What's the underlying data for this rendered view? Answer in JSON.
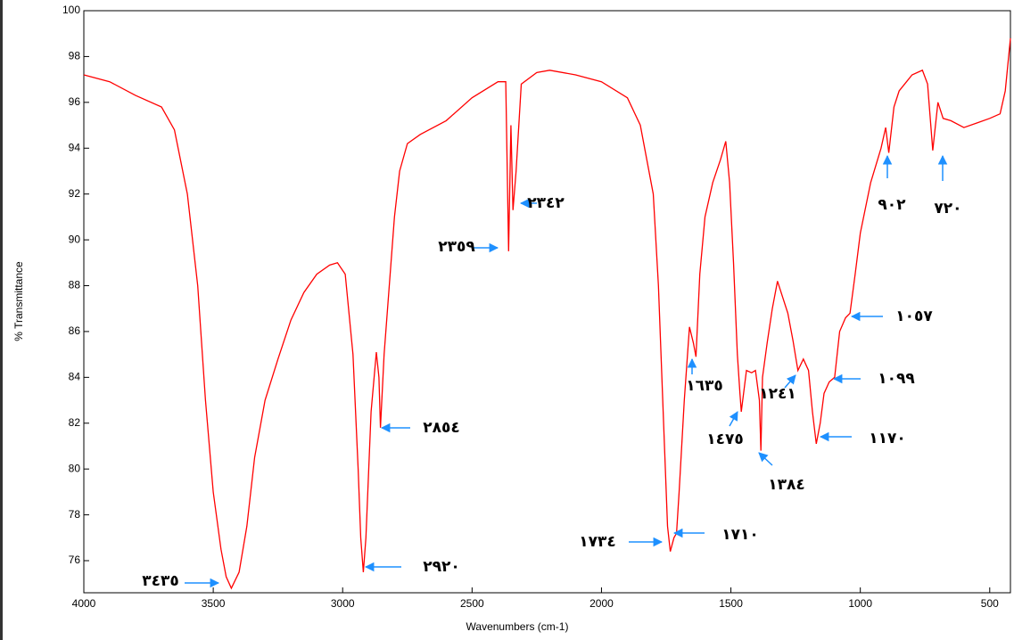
{
  "chart_data": {
    "type": "line",
    "xlabel": "Wavenumbers (cm-1)",
    "ylabel": "% Transmittance",
    "color": "#ff0000",
    "annotation_color": "#1e90ff",
    "xlim": [
      4000,
      420
    ],
    "ylim": [
      74.6,
      100
    ],
    "xticks": [
      4000,
      3500,
      3000,
      2500,
      2000,
      1500,
      1000,
      500
    ],
    "yticks": [
      76,
      78,
      80,
      82,
      84,
      86,
      88,
      90,
      92,
      94,
      96,
      98,
      100
    ],
    "x": [
      4000,
      3900,
      3800,
      3700,
      3650,
      3600,
      3560,
      3530,
      3500,
      3470,
      3450,
      3430,
      3400,
      3370,
      3340,
      3300,
      3250,
      3200,
      3150,
      3100,
      3050,
      3020,
      2990,
      2960,
      2940,
      2930,
      2920,
      2910,
      2890,
      2870,
      2860,
      2854,
      2840,
      2820,
      2800,
      2780,
      2750,
      2700,
      2600,
      2500,
      2400,
      2370,
      2359,
      2350,
      2342,
      2330,
      2310,
      2250,
      2200,
      2100,
      2000,
      1900,
      1850,
      1800,
      1780,
      1760,
      1745,
      1734,
      1720,
      1710,
      1700,
      1680,
      1660,
      1645,
      1635,
      1620,
      1600,
      1570,
      1540,
      1520,
      1505,
      1490,
      1475,
      1465,
      1460,
      1440,
      1420,
      1405,
      1390,
      1384,
      1378,
      1360,
      1340,
      1320,
      1300,
      1280,
      1260,
      1241,
      1220,
      1200,
      1185,
      1170,
      1155,
      1140,
      1120,
      1099,
      1080,
      1057,
      1040,
      1020,
      1000,
      960,
      920,
      902,
      890,
      870,
      850,
      800,
      760,
      740,
      720,
      700,
      680,
      650,
      600,
      550,
      500,
      460,
      440,
      420
    ],
    "values": [
      97.2,
      96.9,
      96.3,
      95.8,
      94.8,
      92,
      88,
      83,
      79,
      76.5,
      75.3,
      74.8,
      75.5,
      77.5,
      80.5,
      83,
      84.8,
      86.5,
      87.7,
      88.5,
      88.9,
      89,
      88.5,
      85,
      80,
      77,
      75.5,
      77,
      82.5,
      85.1,
      84,
      81.8,
      85,
      88,
      91,
      93,
      94.2,
      94.6,
      95.2,
      96.2,
      96.9,
      96.9,
      89.5,
      95,
      91.3,
      93,
      96.8,
      97.3,
      97.4,
      97.2,
      96.9,
      96.2,
      95,
      92,
      88,
      82,
      77.5,
      76.4,
      77,
      77.2,
      79,
      83,
      86.2,
      85.5,
      84.9,
      88.5,
      91,
      92.5,
      93.5,
      94.3,
      92.5,
      89,
      85,
      83.3,
      82.5,
      84.3,
      84.2,
      84.3,
      83,
      80.8,
      84,
      85.5,
      87,
      88.2,
      87.5,
      86.8,
      85.6,
      84.3,
      84.8,
      84.3,
      82.5,
      81.1,
      82,
      83.3,
      83.8,
      84,
      86,
      86.6,
      86.8,
      88.5,
      90.3,
      92.5,
      94,
      94.9,
      93.8,
      95.8,
      96.5,
      97.2,
      97.4,
      96.8,
      93.9,
      96,
      95.3,
      95.2,
      94.9,
      95.1,
      95.3,
      95.5,
      96.5,
      98.8
    ],
    "annotations": [
      {
        "text": "٣٤٣٥"
      },
      {
        "text": "٢٩٢٠"
      },
      {
        "text": "٢٨٥٤"
      },
      {
        "text": "٢٣٥٩"
      },
      {
        "text": "٢٣٤٢"
      },
      {
        "text": "١٧٣٤"
      },
      {
        "text": "١٧١٠"
      },
      {
        "text": "١٦٣٥"
      },
      {
        "text": "١٤٧٥"
      },
      {
        "text": "١٣٨٤"
      },
      {
        "text": "١٢٤١"
      },
      {
        "text": "١١٧٠"
      },
      {
        "text": "١٠٩٩"
      },
      {
        "text": "١٠٥٧"
      },
      {
        "text": "٩٠٢"
      },
      {
        "text": "٧٢٠"
      }
    ]
  }
}
